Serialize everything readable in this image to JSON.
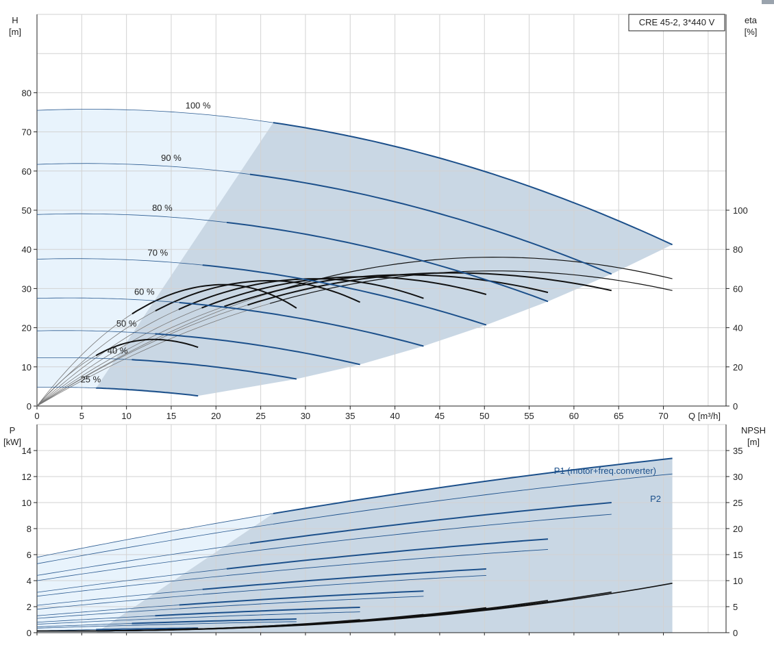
{
  "model_box": "CRE 45-2, 3*440 V",
  "colors": {
    "grid": "#d2d2d2",
    "blue": "#1b4f8a",
    "thin_blue": "#2a5a90",
    "region_light": "#e8f3fc",
    "region_dark": "#c9d7e4",
    "eta": "#111111",
    "eta_thin": "#777777"
  },
  "chart_data": [
    {
      "name": "head-curve",
      "type": "line",
      "xlabel": "Q [m³/h]",
      "ylabel_left": [
        "H",
        "[m]"
      ],
      "ylabel_right": [
        "eta",
        "[%]"
      ],
      "xlim": [
        0,
        77
      ],
      "ylim_left": [
        0,
        100
      ],
      "ylim_right": [
        0,
        200
      ],
      "x_ticks": [
        0,
        5,
        10,
        15,
        20,
        25,
        30,
        35,
        40,
        45,
        50,
        55,
        60,
        65,
        70
      ],
      "y_ticks_left": [
        0,
        10,
        20,
        30,
        40,
        50,
        60,
        70,
        80
      ],
      "y_ticks_right": [
        0,
        20,
        40,
        60,
        80,
        100
      ],
      "grid": true,
      "speed_curves": [
        {
          "label": "100 %",
          "H0": 75.5,
          "Qmax": 71,
          "Hend": 41.2,
          "split": 26.4
        },
        {
          "label": "90 %",
          "H0": 61.7,
          "Qmax": 64.2,
          "Hend": 33.7,
          "split": 23.8
        },
        {
          "label": "80 %",
          "H0": 48.9,
          "Qmax": 57.1,
          "Hend": 26.7,
          "split": 21.2
        },
        {
          "label": "70 %",
          "H0": 37.5,
          "Qmax": 50.2,
          "Hend": 20.7,
          "split": 18.5
        },
        {
          "label": "60 %",
          "H0": 27.5,
          "Qmax": 43.2,
          "Hend": 15.3,
          "split": 15.9
        },
        {
          "label": "50 %",
          "H0": 19.2,
          "Qmax": 36.1,
          "Hend": 10.6,
          "split": 13.2
        },
        {
          "label": "40 %",
          "H0": 12.3,
          "Qmax": 29.0,
          "Hend": 6.9,
          "split": 10.6
        },
        {
          "label": "25 %",
          "H0": 4.8,
          "Qmax": 18.0,
          "Hend": 2.6,
          "split": 6.6
        }
      ],
      "efficiency_curves": [
        {
          "Qmax": 71.0,
          "eta_peak": 76,
          "eta_end": 65
        },
        {
          "Qmax": 71.0,
          "eta_peak": 69,
          "eta_end": 59
        },
        {
          "Qmax": 64.2,
          "eta_peak": 68,
          "eta_end": 59
        },
        {
          "Qmax": 57.1,
          "eta_peak": 67,
          "eta_end": 58
        },
        {
          "Qmax": 50.2,
          "eta_peak": 66,
          "eta_end": 57
        },
        {
          "Qmax": 43.2,
          "eta_peak": 65,
          "eta_end": 55
        },
        {
          "Qmax": 36.1,
          "eta_peak": 64,
          "eta_end": 53
        },
        {
          "Qmax": 29.0,
          "eta_peak": 62,
          "eta_end": 50
        },
        {
          "Qmax": 18.0,
          "eta_peak": 34,
          "eta_end": 30
        }
      ]
    },
    {
      "name": "power-npsh-curve",
      "type": "line",
      "ylabel_left": [
        "P",
        "[kW]"
      ],
      "ylabel_right": [
        "NPSH",
        "[m]"
      ],
      "xlim": [
        0,
        77
      ],
      "ylim_left": [
        0,
        16
      ],
      "ylim_right": [
        0,
        40
      ],
      "x_ticks": [
        0,
        5,
        10,
        15,
        20,
        25,
        30,
        35,
        40,
        45,
        50,
        55,
        60,
        65,
        70
      ],
      "y_ticks_left": [
        0,
        2,
        4,
        6,
        8,
        10,
        12,
        14
      ],
      "y_ticks_right": [
        0,
        5,
        10,
        15,
        20,
        25,
        30,
        35
      ],
      "grid": true,
      "series_labels": {
        "p1": "P1 (motor+freq.converter)",
        "p2": "P2"
      },
      "power_curves": [
        {
          "Qmax": 71.0,
          "P1_0": 5.8,
          "P1_end": 13.4,
          "P2_0": 5.3,
          "P2_end": 12.2,
          "split": 26.4
        },
        {
          "Qmax": 64.2,
          "P1_0": 4.4,
          "P1_end": 10.0,
          "P2_0": 4.0,
          "P2_end": 9.1,
          "split": 23.8
        },
        {
          "Qmax": 57.1,
          "P1_0": 3.1,
          "P1_end": 7.2,
          "P2_0": 2.8,
          "P2_end": 6.4,
          "split": 21.2
        },
        {
          "Qmax": 50.2,
          "P1_0": 2.1,
          "P1_end": 4.9,
          "P2_0": 1.8,
          "P2_end": 4.4,
          "split": 18.5
        },
        {
          "Qmax": 43.2,
          "P1_0": 1.3,
          "P1_end": 3.2,
          "P2_0": 1.1,
          "P2_end": 2.8,
          "split": 15.9
        },
        {
          "Qmax": 36.1,
          "P1_0": 0.8,
          "P1_end": 1.95,
          "P2_0": 0.65,
          "P2_end": 1.6,
          "split": 13.2
        },
        {
          "Qmax": 29.0,
          "P1_0": 0.45,
          "P1_end": 1.05,
          "P2_0": 0.35,
          "P2_end": 0.85,
          "split": 10.6
        },
        {
          "Qmax": 18.0,
          "P1_0": 0.15,
          "P1_end": 0.35,
          "P2_0": 0.1,
          "P2_end": 0.25,
          "split": 6.6
        }
      ],
      "npsh_curves": [
        {
          "Qmax": 71.0,
          "N_end": 9.5
        },
        {
          "Qmax": 64.2,
          "N_end": 7.8
        },
        {
          "Qmax": 57.1,
          "N_end": 6.2
        },
        {
          "Qmax": 50.2,
          "N_end": 4.8
        },
        {
          "Qmax": 43.2,
          "N_end": 3.5
        },
        {
          "Qmax": 36.1,
          "N_end": 2.5
        },
        {
          "Qmax": 29.0,
          "N_end": 1.6
        },
        {
          "Qmax": 18.0,
          "N_end": 0.8
        }
      ]
    }
  ]
}
